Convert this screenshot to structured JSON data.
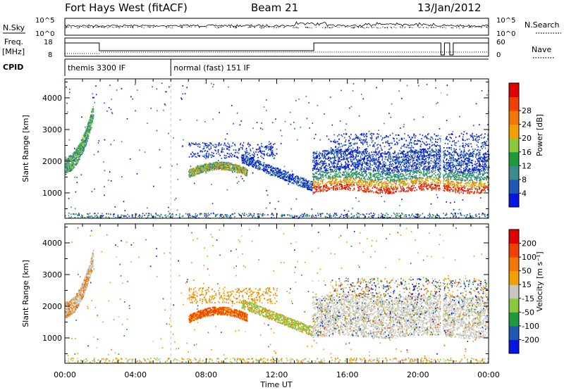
{
  "header": {
    "station": "Fort Hays West (fitACF)",
    "beam": "Beam 21",
    "date": "13/Jan/2012"
  },
  "strips": {
    "nsky_label": "N.Sky",
    "nsky_ticks": [
      "10^5",
      "10^0"
    ],
    "nsearch_label": "N.Search",
    "nsearch_ticks": [
      "10^5",
      "10^0"
    ],
    "freq_label_1": "Freq.",
    "freq_label_2": "[MHz]",
    "freq_ticks": [
      "18",
      "8"
    ],
    "nave_label": "Nave",
    "nave_ticks": [
      "60",
      "0"
    ],
    "cpid_label": "CPID",
    "cpid_segments": [
      {
        "label": "themis 3300 IF",
        "start_h": 0,
        "end_h": 6
      },
      {
        "label": "normal (fast) 151 IF",
        "start_h": 6,
        "end_h": 24
      }
    ]
  },
  "chart_data": [
    {
      "type": "heatmap",
      "panel": "power",
      "ylabel": "Slant Range [km]",
      "yticks": [
        1000,
        2000,
        3000,
        4000
      ],
      "ylim": [
        200,
        4600
      ],
      "xlim": [
        0,
        24
      ],
      "colorbar_label": "Power [dB]",
      "colorbar_ticks": [
        "4",
        "8",
        "12",
        "16",
        "20",
        "24",
        "28"
      ],
      "colorbar_colors": [
        "#0a14e0",
        "#1e5ab4",
        "#3c8c8c",
        "#1e9a3c",
        "#8cc83c",
        "#f0a000",
        "#f07800",
        "#f04000",
        "#e00000"
      ]
    },
    {
      "type": "heatmap",
      "panel": "velocity",
      "ylabel": "Slant Range [km]",
      "yticks": [
        1000,
        2000,
        3000,
        4000
      ],
      "ylim": [
        200,
        4600
      ],
      "xlim": [
        0,
        24
      ],
      "xticks": [
        "00:00",
        "04:00",
        "08:00",
        "12:00",
        "16:00",
        "20:00",
        "00:00"
      ],
      "xlabel": "Time UT",
      "colorbar_label": "Velocity [m s⁻¹]",
      "colorbar_ticks": [
        "200",
        "100",
        "50",
        "15",
        "-15",
        "-50",
        "-100",
        "-200"
      ],
      "colorbar_colors": [
        "#0a14e0",
        "#1e5ab4",
        "#1e9a3c",
        "#8cc83c",
        "#c8c8c0",
        "#f0a000",
        "#f07800",
        "#f04000",
        "#e00000"
      ]
    }
  ]
}
